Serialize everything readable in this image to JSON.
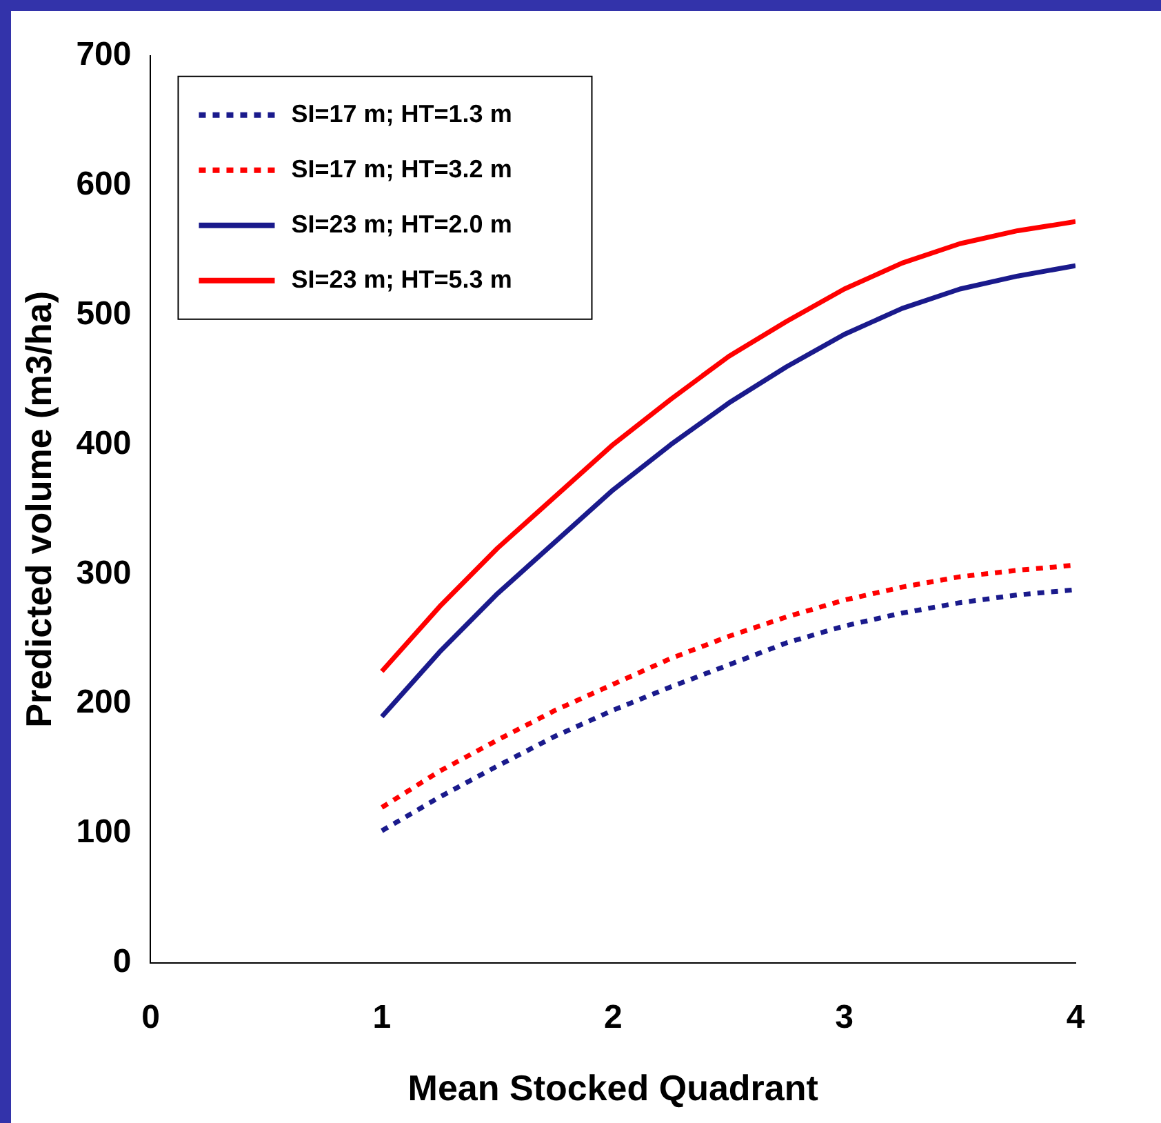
{
  "chart_data": {
    "type": "line",
    "xlabel": "Mean Stocked Quadrant",
    "ylabel": "Predicted volume (m3/ha)",
    "x": [
      1,
      1.25,
      1.5,
      1.75,
      2,
      2.25,
      2.5,
      2.75,
      3,
      3.25,
      3.5,
      3.75,
      4
    ],
    "xlim": [
      0,
      4
    ],
    "xticks": [
      0,
      1,
      2,
      3,
      4
    ],
    "ylim": [
      0,
      700
    ],
    "yticks": [
      0,
      100,
      200,
      300,
      400,
      500,
      600,
      700
    ],
    "grid": false,
    "legend": "top left",
    "marker": "none",
    "series": [
      {
        "name": "SI=17 m; HT=1.3 m",
        "color": "#1a1a8c",
        "line_style": "dotted",
        "values": [
          102,
          128,
          152,
          175,
          195,
          213,
          230,
          247,
          260,
          270,
          278,
          284,
          288
        ]
      },
      {
        "name": "SI=17 m; HT=3.2 m",
        "color": "#ff0000",
        "line_style": "dotted",
        "values": [
          120,
          148,
          172,
          195,
          215,
          235,
          252,
          267,
          280,
          290,
          298,
          303,
          307
        ]
      },
      {
        "name": "SI=23 m; HT=2.0 m",
        "color": "#1a1a8c",
        "line_style": "solid",
        "values": [
          190,
          240,
          285,
          325,
          365,
          400,
          432,
          460,
          485,
          505,
          520,
          530,
          538
        ]
      },
      {
        "name": "SI=23 m; HT=5.3 m",
        "color": "#ff0000",
        "line_style": "solid",
        "values": [
          225,
          275,
          320,
          360,
          400,
          435,
          468,
          495,
          520,
          540,
          555,
          565,
          572
        ]
      }
    ]
  }
}
